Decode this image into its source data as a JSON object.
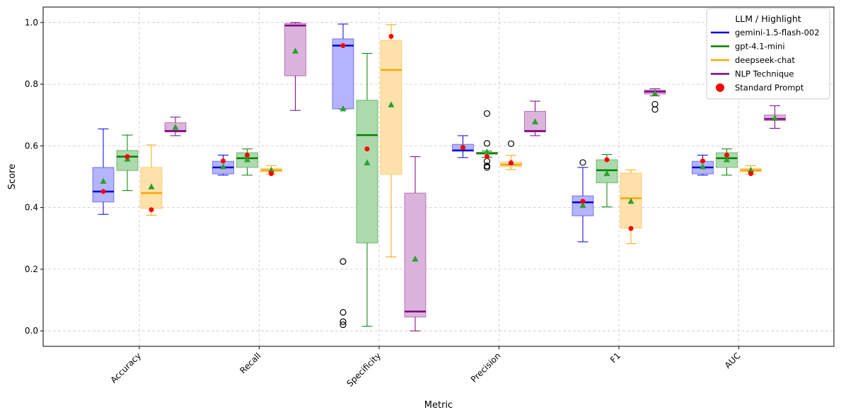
{
  "chart_data": {
    "type": "box",
    "title": "",
    "xlabel": "Metric",
    "ylabel": "Score",
    "ylim": [
      -0.05,
      1.05
    ],
    "yticks": [
      "0.0",
      "0.2",
      "0.4",
      "0.6",
      "0.8",
      "1.0"
    ],
    "grid": true,
    "categories": [
      "Accuracy",
      "Recall",
      "Specificity",
      "Precision",
      "F1",
      "AUC"
    ],
    "legend": {
      "title": "LLM / Highlight",
      "position": "top-right",
      "entries": [
        {
          "label": "gemini-1.5-flash-002",
          "color": "#0000dd",
          "marker": "line"
        },
        {
          "label": "gpt-4.1-mini",
          "color": "#008000",
          "marker": "line"
        },
        {
          "label": "deepseek-chat",
          "color": "#ffa500",
          "marker": "line"
        },
        {
          "label": "NLP Technique",
          "color": "#800080",
          "marker": "line"
        },
        {
          "label": "Standard Prompt",
          "color": "#ff0000",
          "marker": "dot"
        }
      ]
    },
    "series": [
      {
        "name": "gemini-1.5-flash-002",
        "color": "#0000dd",
        "fill": "#b0b0ff",
        "boxes": [
          {
            "category": "Accuracy",
            "whislo": 0.378,
            "q1": 0.418,
            "med": 0.452,
            "q3": 0.53,
            "whishi": 0.655,
            "mean": 0.485,
            "standard": 0.452,
            "fliers": []
          },
          {
            "category": "Recall",
            "whislo": 0.505,
            "q1": 0.509,
            "med": 0.53,
            "q3": 0.55,
            "whishi": 0.57,
            "mean": 0.532,
            "standard": 0.551,
            "fliers": []
          },
          {
            "category": "Specificity",
            "whislo": 0.72,
            "q1": 0.72,
            "med": 0.925,
            "q3": 0.947,
            "whishi": 0.995,
            "mean": 0.72,
            "standard": 0.925,
            "fliers": [
              0.225,
              0.06,
              0.03,
              0.02
            ]
          },
          {
            "category": "Precision",
            "whislo": 0.562,
            "q1": 0.583,
            "med": 0.585,
            "q3": 0.605,
            "whishi": 0.633,
            "mean": 0.595,
            "standard": 0.595,
            "fliers": []
          },
          {
            "category": "F1",
            "whislo": 0.289,
            "q1": 0.373,
            "med": 0.417,
            "q3": 0.438,
            "whishi": 0.53,
            "mean": 0.407,
            "standard": 0.42,
            "fliers": [
              0.546
            ]
          },
          {
            "category": "AUC",
            "whislo": 0.505,
            "q1": 0.509,
            "med": 0.53,
            "q3": 0.55,
            "whishi": 0.57,
            "mean": 0.532,
            "standard": 0.551,
            "fliers": []
          }
        ]
      },
      {
        "name": "gpt-4.1-mini",
        "color": "#008000",
        "fill": "#a8d8a8",
        "boxes": [
          {
            "category": "Accuracy",
            "whislo": 0.455,
            "q1": 0.52,
            "med": 0.565,
            "q3": 0.585,
            "whishi": 0.635,
            "mean": 0.557,
            "standard": 0.565,
            "fliers": []
          },
          {
            "category": "Recall",
            "whislo": 0.505,
            "q1": 0.53,
            "med": 0.56,
            "q3": 0.578,
            "whishi": 0.59,
            "mean": 0.555,
            "standard": 0.57,
            "fliers": []
          },
          {
            "category": "Specificity",
            "whislo": 0.015,
            "q1": 0.285,
            "med": 0.635,
            "q3": 0.748,
            "whishi": 0.9,
            "mean": 0.545,
            "standard": 0.59,
            "fliers": []
          },
          {
            "category": "Precision",
            "whislo": 0.563,
            "q1": 0.573,
            "med": 0.576,
            "q3": 0.579,
            "whishi": 0.583,
            "mean": 0.58,
            "standard": 0.565,
            "fliers": [
              0.705,
              0.608,
              0.55,
              0.535,
              0.53
            ]
          },
          {
            "category": "F1",
            "whislo": 0.402,
            "q1": 0.48,
            "med": 0.521,
            "q3": 0.555,
            "whishi": 0.572,
            "mean": 0.51,
            "standard": 0.555,
            "fliers": []
          },
          {
            "category": "AUC",
            "whislo": 0.505,
            "q1": 0.53,
            "med": 0.56,
            "q3": 0.578,
            "whishi": 0.59,
            "mean": 0.555,
            "standard": 0.57,
            "fliers": []
          }
        ]
      },
      {
        "name": "deepseek-chat",
        "color": "#ffa500",
        "fill": "#ffe0a6",
        "boxes": [
          {
            "category": "Accuracy",
            "whislo": 0.375,
            "q1": 0.397,
            "med": 0.447,
            "q3": 0.53,
            "whishi": 0.603,
            "mean": 0.467,
            "standard": 0.393,
            "fliers": []
          },
          {
            "category": "Recall",
            "whislo": 0.508,
            "q1": 0.516,
            "med": 0.521,
            "q3": 0.527,
            "whishi": 0.536,
            "mean": 0.521,
            "standard": 0.51,
            "fliers": []
          },
          {
            "category": "Specificity",
            "whislo": 0.24,
            "q1": 0.507,
            "med": 0.846,
            "q3": 0.942,
            "whishi": 0.993,
            "mean": 0.733,
            "standard": 0.955,
            "fliers": []
          },
          {
            "category": "Precision",
            "whislo": 0.523,
            "q1": 0.532,
            "med": 0.539,
            "q3": 0.548,
            "whishi": 0.569,
            "mean": 0.545,
            "standard": 0.545,
            "fliers": [
              0.607
            ]
          },
          {
            "category": "F1",
            "whislo": 0.283,
            "q1": 0.333,
            "med": 0.43,
            "q3": 0.512,
            "whishi": 0.522,
            "mean": 0.42,
            "standard": 0.332,
            "fliers": []
          },
          {
            "category": "AUC",
            "whislo": 0.508,
            "q1": 0.516,
            "med": 0.521,
            "q3": 0.527,
            "whishi": 0.536,
            "mean": 0.521,
            "standard": 0.51,
            "fliers": []
          }
        ]
      },
      {
        "name": "NLP Technique",
        "color": "#800080",
        "fill": "#d8b0d8",
        "boxes": [
          {
            "category": "Accuracy",
            "whislo": 0.633,
            "q1": 0.645,
            "med": 0.648,
            "q3": 0.675,
            "whishi": 0.693,
            "mean": 0.66,
            "standard": null,
            "fliers": []
          },
          {
            "category": "Recall",
            "whislo": 0.715,
            "q1": 0.827,
            "med": 0.99,
            "q3": 0.997,
            "whishi": 1.0,
            "mean": 0.907,
            "standard": null,
            "fliers": []
          },
          {
            "category": "Specificity",
            "whislo": 0.0,
            "q1": 0.045,
            "med": 0.063,
            "q3": 0.447,
            "whishi": 0.565,
            "mean": 0.233,
            "standard": null,
            "fliers": []
          },
          {
            "category": "Precision",
            "whislo": 0.633,
            "q1": 0.645,
            "med": 0.648,
            "q3": 0.712,
            "whishi": 0.745,
            "mean": 0.678,
            "standard": null,
            "fliers": []
          },
          {
            "category": "F1",
            "whislo": 0.762,
            "q1": 0.768,
            "med": 0.776,
            "q3": 0.781,
            "whishi": 0.785,
            "mean": 0.77,
            "standard": null,
            "fliers": [
              0.735,
              0.718
            ]
          },
          {
            "category": "AUC",
            "whislo": 0.657,
            "q1": 0.682,
            "med": 0.687,
            "q3": 0.7,
            "whishi": 0.73,
            "mean": 0.69,
            "standard": null,
            "fliers": []
          }
        ]
      }
    ],
    "mean_marker_color": "#2ca02c",
    "standard_marker_color": "#ff0000"
  }
}
